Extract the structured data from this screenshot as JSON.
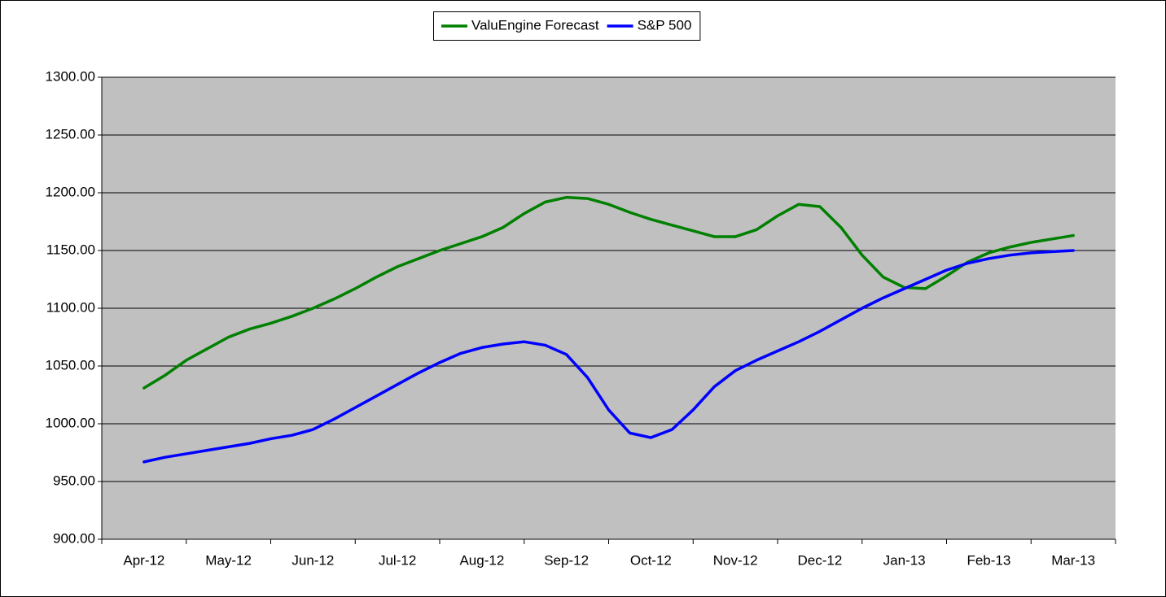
{
  "chart_data": {
    "type": "line",
    "categories": [
      "Apr-12",
      null,
      null,
      null,
      "May-12",
      null,
      null,
      null,
      "Jun-12",
      null,
      null,
      null,
      "Jul-12",
      null,
      null,
      null,
      "Aug-12",
      null,
      null,
      null,
      "Sep-12",
      null,
      null,
      null,
      "Oct-12",
      null,
      null,
      null,
      "Nov-12",
      null,
      null,
      null,
      "Dec-12",
      null,
      null,
      null,
      "Jan-13",
      null,
      null,
      null,
      "Feb-13",
      null,
      null,
      null,
      "Mar-13"
    ],
    "series": [
      {
        "name": "ValuEngine Forecast",
        "color": "#008000",
        "values": [
          1031,
          1042,
          1055,
          1065,
          1075,
          1082,
          1087,
          1093,
          1100,
          1108,
          1117,
          1127,
          1136,
          1143,
          1150,
          1156,
          1162,
          1170,
          1182,
          1192,
          1196,
          1195,
          1190,
          1183,
          1177,
          1172,
          1167,
          1162,
          1162,
          1168,
          1180,
          1190,
          1188,
          1170,
          1146,
          1127,
          1118,
          1117,
          1128,
          1140,
          1148,
          1153,
          1157,
          1160,
          1163
        ]
      },
      {
        "name": "S&P 500",
        "color": "#0000ff",
        "values": [
          967,
          971,
          974,
          977,
          980,
          983,
          987,
          990,
          995,
          1004,
          1014,
          1024,
          1034,
          1044,
          1053,
          1061,
          1066,
          1069,
          1071,
          1068,
          1060,
          1040,
          1012,
          992,
          988,
          995,
          1012,
          1032,
          1046,
          1055,
          1063,
          1071,
          1080,
          1090,
          1100,
          1109,
          1117,
          1125,
          1133,
          1139,
          1143,
          1146,
          1148,
          1149,
          1150
        ]
      }
    ],
    "ylim": [
      900,
      1300
    ],
    "yticks": [
      {
        "value": 900,
        "label": "900.00"
      },
      {
        "value": 950,
        "label": "950.00"
      },
      {
        "value": 1000,
        "label": "1000.00"
      },
      {
        "value": 1050,
        "label": "1050.00"
      },
      {
        "value": 1100,
        "label": "1100.00"
      },
      {
        "value": 1150,
        "label": "1150.00"
      },
      {
        "value": 1200,
        "label": "1200.00"
      },
      {
        "value": 1250,
        "label": "1250.00"
      },
      {
        "value": 1300,
        "label": "1300.00"
      }
    ],
    "grid": true,
    "legend": "top"
  }
}
